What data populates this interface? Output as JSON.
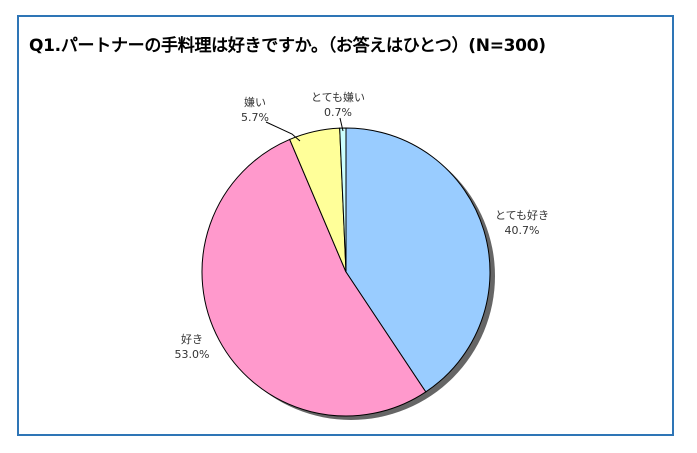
{
  "chart_data": {
    "type": "pie",
    "title": "Q1.パートナーの手料理は好きですか。（お答えはひとつ）(N=300)",
    "start_angle_deg": 0,
    "direction": "clockwise",
    "slices": [
      {
        "name": "とても好き",
        "value": 40.7,
        "label": "40.7%",
        "color": "#99ccff"
      },
      {
        "name": "好き",
        "value": 53.0,
        "label": "53.0%",
        "color": "#ff99cc"
      },
      {
        "name": "嫌い",
        "value": 5.7,
        "label": "5.7%",
        "color": "#ffff99"
      },
      {
        "name": "とても嫌い",
        "value": 0.7,
        "label": "0.7%",
        "color": "#ccffff"
      }
    ],
    "slice_border_color": "#000000",
    "shadow_color": "#666666"
  },
  "colors": {
    "frame": "#2e75b6"
  }
}
